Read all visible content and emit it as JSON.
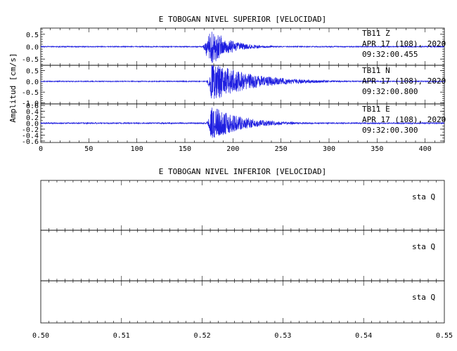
{
  "chart_data": [
    {
      "type": "line",
      "title": "E TOBOGAN NIVEL SUPERIOR [VELOCIDAD]",
      "ylabel": "Amplitud [cm/s]",
      "xlim": [
        0,
        420
      ],
      "xticks": [
        0,
        50,
        100,
        150,
        200,
        250,
        300,
        350,
        400
      ],
      "line_color": "#1f1fe0",
      "traces": [
        {
          "station": "TB11",
          "component": "Z",
          "date_line": "APR 17 (108), 2020",
          "time_line": "09:32:00.455",
          "ylim": [
            -0.75,
            0.75
          ],
          "yticks": [
            "0.5",
            "0.0",
            "-0.5"
          ],
          "onset_s": 172,
          "peak_time_s": 179,
          "peak_amplitude": 0.7,
          "noise_amplitude": 0.02,
          "coda_end_s": 240
        },
        {
          "station": "TB11",
          "component": "N",
          "date_line": "APR 17 (108), 2020",
          "time_line": "09:32:00.800",
          "ylim": [
            -1.05,
            0.75
          ],
          "yticks": [
            "0.5",
            "0.0",
            "-0.5",
            "-1.0"
          ],
          "onset_s": 176,
          "peak_time_s": 178,
          "peak_amplitude": 0.95,
          "noise_amplitude": 0.02,
          "coda_end_s": 300
        },
        {
          "station": "TB11",
          "component": "E",
          "date_line": "APR 17 (108), 2020",
          "time_line": "09:32:00.300",
          "ylim": [
            -0.65,
            0.65
          ],
          "yticks": [
            "0.6",
            "0.4",
            "0.2",
            "0.0",
            "-0.2",
            "-0.4",
            "-0.6"
          ],
          "onset_s": 176,
          "peak_time_s": 178,
          "peak_amplitude": 0.6,
          "noise_amplitude": 0.02,
          "coda_end_s": 270
        }
      ]
    },
    {
      "type": "line",
      "title": "E TOBOGAN NIVEL INFERIOR [VELOCIDAD]",
      "xlim": [
        0.5,
        0.55
      ],
      "xticks": [
        "0.50",
        "0.51",
        "0.52",
        "0.53",
        "0.54",
        "0.55"
      ],
      "panels": [
        {
          "label": "sta  Q"
        },
        {
          "label": "sta  Q"
        },
        {
          "label": "sta  Q"
        }
      ]
    }
  ]
}
